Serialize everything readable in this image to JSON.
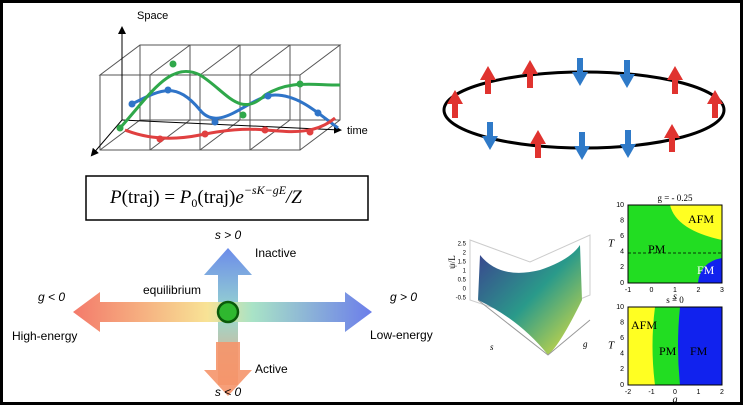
{
  "trajectory": {
    "axis_space": "Space",
    "axis_time": "time"
  },
  "equation": {
    "lhs": "P",
    "lhs_arg": "(traj) = ",
    "rhs": "P",
    "rhs_sub": "0",
    "rhs_arg": "(traj)",
    "exp_base": "e",
    "exponent": "−sK−gE",
    "tail": "/Z"
  },
  "cross": {
    "s_pos": "s > 0",
    "inactive": "Inactive",
    "g_neg": "g < 0",
    "equilibrium": "equilibrium",
    "g_pos": "g > 0",
    "high_energy": "High-energy",
    "low_energy": "Low-energy",
    "active": "Active",
    "s_neg": "s < 0"
  },
  "surface_plot": {
    "y_label": "ψ/L",
    "x_label": "s",
    "z_label": "g",
    "y_ticks": [
      "2.5",
      "2",
      "1.5",
      "1",
      "0.5",
      "0",
      "-0.5"
    ]
  },
  "phase_top": {
    "title": "g = - 0.25",
    "y_label": "T",
    "x_label": "s",
    "regions": [
      "PM",
      "AFM",
      "FM"
    ],
    "y_ticks": [
      "10",
      "8",
      "6",
      "4",
      "2",
      "0"
    ],
    "x_ticks": [
      "-1",
      "0",
      "1",
      "2",
      "3"
    ]
  },
  "phase_bottom": {
    "title": "s = 0",
    "y_label": "T",
    "x_label": "g",
    "regions": [
      "AFM",
      "PM",
      "FM"
    ],
    "y_ticks": [
      "10",
      "8",
      "6",
      "4",
      "2",
      "0"
    ],
    "x_ticks": [
      "-2",
      "-1",
      "0",
      "1",
      "2"
    ]
  }
}
